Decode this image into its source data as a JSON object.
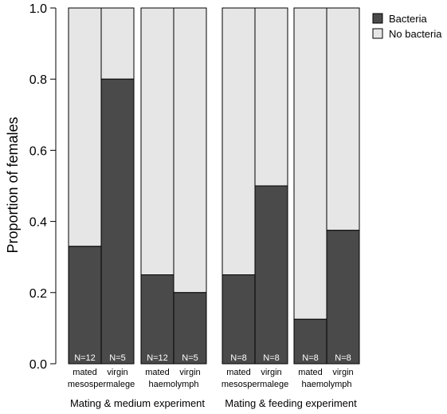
{
  "chart_data": {
    "type": "bar",
    "stacked": true,
    "ylabel": "Proportion of females",
    "ylim": [
      0,
      1.0
    ],
    "yticks": [
      "0.0",
      "0.2",
      "0.4",
      "0.6",
      "0.8",
      "1.0"
    ],
    "legend": {
      "placement": "top-right",
      "entries": [
        {
          "label": "Bacteria",
          "color": "#4a4a4a"
        },
        {
          "label": "No bacteria",
          "color": "#e6e6e6"
        }
      ]
    },
    "colors": {
      "bacteria": "#4a4a4a",
      "no_bacteria": "#e6e6e6",
      "edge": "#000000"
    },
    "bars": [
      {
        "mating": "mated",
        "n_label": "N=12",
        "bacteria": 0.33
      },
      {
        "mating": "virgin",
        "n_label": "N=5",
        "bacteria": 0.8
      },
      {
        "mating": "mated",
        "n_label": "N=12",
        "bacteria": 0.25
      },
      {
        "mating": "virgin",
        "n_label": "N=5",
        "bacteria": 0.2
      },
      {
        "mating": "mated",
        "n_label": "N=8",
        "bacteria": 0.25
      },
      {
        "mating": "virgin",
        "n_label": "N=8",
        "bacteria": 0.5
      },
      {
        "mating": "mated",
        "n_label": "N=8",
        "bacteria": 0.125
      },
      {
        "mating": "virgin",
        "n_label": "N=8",
        "bacteria": 0.375
      }
    ],
    "tissue_labels": [
      "mesospermalege",
      "haemolymph",
      "mesospermalege",
      "haemolymph"
    ],
    "experiment_labels": [
      "Mating & medium experiment",
      "Mating & feeding experiment"
    ]
  }
}
